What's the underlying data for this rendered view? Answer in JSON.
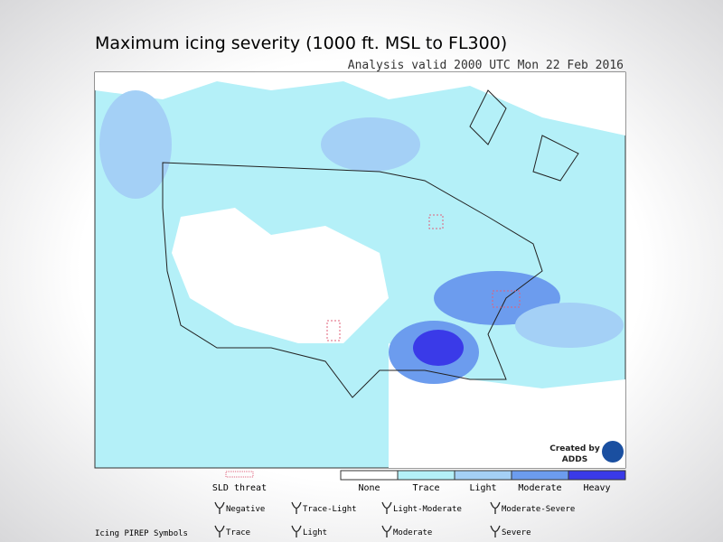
{
  "header": {
    "title": "Maximum icing severity (1000 ft. MSL to FL300)",
    "subtitle": "Analysis valid 2000 UTC Mon 22 Feb 2016"
  },
  "credit": {
    "line1": "Created by",
    "line2": "ADDS"
  },
  "sld": {
    "label": "SLD threat",
    "color": "#e0607a"
  },
  "legend": [
    {
      "label": "None",
      "color": "#ffffff"
    },
    {
      "label": "Trace",
      "color": "#b4f0f8"
    },
    {
      "label": "Light",
      "color": "#a4d0f6"
    },
    {
      "label": "Moderate",
      "color": "#6c9cee"
    },
    {
      "label": "Heavy",
      "color": "#3a3ae8"
    }
  ],
  "pirep": {
    "title": "Icing PIREP Symbols",
    "symbols": [
      "Negative",
      "Trace-Light",
      "Light-Moderate",
      "Moderate-Severe",
      "Trace",
      "Light",
      "Moderate",
      "Severe"
    ]
  }
}
